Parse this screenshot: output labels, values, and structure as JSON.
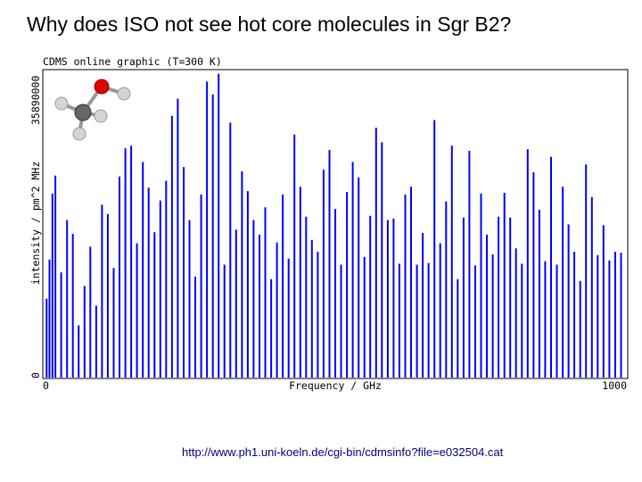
{
  "slide": {
    "title": "Why does ISO not see hot core molecules in Sgr B2?",
    "source_url": "http://www.ph1.uni-koeln.de/cgi-bin/cdmsinfo?file=e032504.cat"
  },
  "chart_data": {
    "type": "bar",
    "title": "CDMS online graphic (T=300 K)",
    "xlabel": "Frequency / GHz",
    "ylabel": "intensity / pm^2 MHz",
    "xlim": [
      0,
      1000
    ],
    "ylim": [
      0,
      35890000
    ],
    "x_tick_labels": [
      "0",
      "1000"
    ],
    "y_tick_labels": [
      "0",
      "35890000"
    ],
    "grid": false,
    "colors": {
      "bars": "#0000ff",
      "axes": "#000000"
    },
    "molecule": "methanol",
    "series": [
      {
        "x": [
          5,
          10,
          15,
          20,
          30,
          40,
          50,
          60,
          70,
          80,
          90,
          100,
          110,
          120,
          130,
          140,
          150,
          160,
          170,
          180,
          190,
          200,
          210,
          220,
          230,
          240,
          250,
          260,
          270,
          280,
          290,
          300,
          310,
          320,
          330,
          340,
          350,
          360,
          370,
          380,
          390,
          400,
          410,
          420,
          430,
          440,
          450,
          460,
          470,
          480,
          490,
          500,
          510,
          520,
          530,
          540,
          550,
          560,
          570,
          580,
          590,
          600,
          610,
          620,
          630,
          640,
          650,
          660,
          670,
          680,
          690,
          700,
          710,
          720,
          730,
          740,
          750,
          760,
          770,
          780,
          790,
          800,
          810,
          820,
          830,
          840,
          850,
          860,
          870,
          880,
          890,
          900,
          910,
          920,
          930,
          940,
          950,
          960,
          970,
          980,
          990
        ],
        "values": [
          9200000,
          13800000,
          21500000,
          23600000,
          12300000,
          18400000,
          16800000,
          6100000,
          10700000,
          15300000,
          8400000,
          20200000,
          19100000,
          12800000,
          23500000,
          26800000,
          27100000,
          15700000,
          25200000,
          22200000,
          17000000,
          20700000,
          23000000,
          30600000,
          32600000,
          24600000,
          18400000,
          11800000,
          21400000,
          34600000,
          33100000,
          35500000,
          13200000,
          29800000,
          17300000,
          24100000,
          21800000,
          18400000,
          16700000,
          19900000,
          11500000,
          15800000,
          21400000,
          13900000,
          28400000,
          22300000,
          18800000,
          16100000,
          14700000,
          24300000,
          26600000,
          19700000,
          13200000,
          21700000,
          25200000,
          23400000,
          14100000,
          18900000,
          29200000,
          27500000,
          18400000,
          18600000,
          13300000,
          21400000,
          22300000,
          13200000,
          16900000,
          13400000,
          30100000,
          15700000,
          20600000,
          27100000,
          11500000,
          18700000,
          26500000,
          13100000,
          21500000,
          16700000,
          14400000,
          18800000,
          21600000,
          18700000,
          15100000,
          13300000,
          26700000,
          24000000,
          19600000,
          13600000,
          25800000,
          13200000,
          22300000,
          17900000,
          14700000,
          11300000,
          24900000,
          21100000,
          14300000,
          17800000,
          13700000,
          14700000,
          14600000
        ]
      }
    ]
  }
}
